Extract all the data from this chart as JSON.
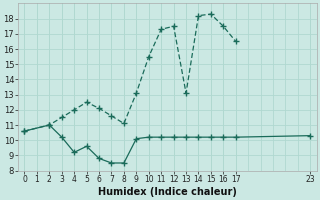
{
  "xlabel": "Humidex (Indice chaleur)",
  "bg_color": "#cbe8e3",
  "grid_color": "#b0d8d0",
  "line_color": "#1a6b5a",
  "xlim": [
    -0.5,
    23.5
  ],
  "ylim": [
    8,
    19
  ],
  "yticks": [
    8,
    9,
    10,
    11,
    12,
    13,
    14,
    15,
    16,
    17,
    18
  ],
  "xtick_positions": [
    0,
    1,
    2,
    3,
    4,
    5,
    6,
    7,
    8,
    9,
    10,
    11,
    12,
    13,
    14,
    15,
    16,
    17,
    23
  ],
  "xtick_labels": [
    "0",
    "1",
    "2",
    "3",
    "4",
    "5",
    "6",
    "7",
    "8",
    "9",
    "10",
    "11",
    "12",
    "13",
    "14",
    "15",
    "16",
    "17",
    "23"
  ],
  "line1_x": [
    0,
    2,
    3,
    4,
    5,
    6,
    7,
    8,
    9,
    10,
    11,
    12,
    13,
    14,
    15,
    16,
    17,
    23
  ],
  "line1_y": [
    10.6,
    11.0,
    10.2,
    9.2,
    9.6,
    8.8,
    8.5,
    8.5,
    10.1,
    10.2,
    10.2,
    10.2,
    10.2,
    10.2,
    10.2,
    10.2,
    10.2,
    10.3
  ],
  "line2_x": [
    0,
    2,
    3,
    4,
    5,
    6,
    7,
    8,
    9,
    10,
    11,
    12,
    13,
    14,
    15,
    16,
    17
  ],
  "line2_y": [
    10.6,
    11.0,
    11.5,
    12.0,
    12.5,
    12.1,
    11.6,
    11.1,
    13.1,
    15.5,
    17.3,
    17.5,
    13.1,
    18.2,
    18.3,
    17.5,
    16.5
  ]
}
